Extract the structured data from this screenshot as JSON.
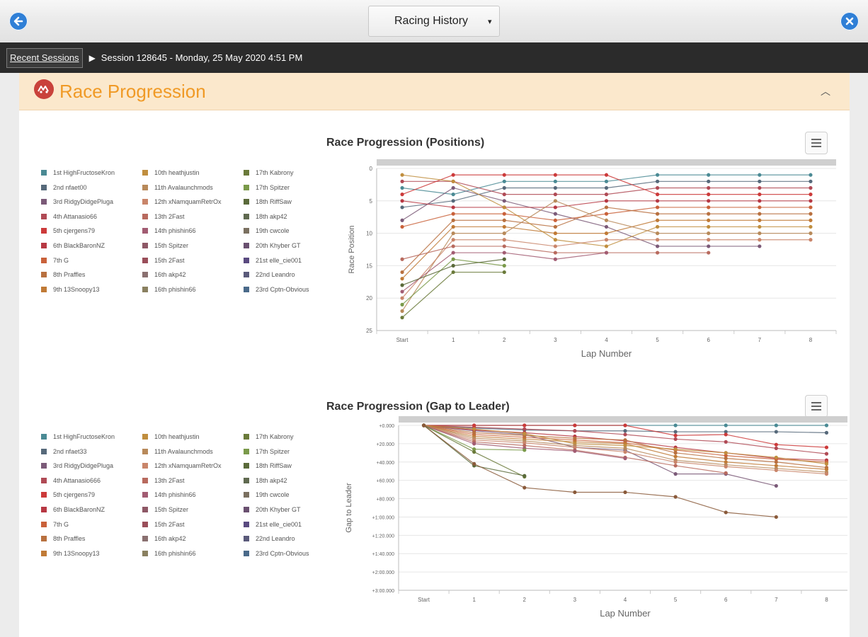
{
  "header": {
    "dropdown_label": "Racing History",
    "dropdown_caret": "▾",
    "back_icon": "arrow-left-icon",
    "close_icon": "close-icon"
  },
  "breadcrumb": {
    "recent": "Recent Sessions",
    "arrow": "▶",
    "session": "Session 128645 - Monday, 25 May 2020 4:51 PM"
  },
  "panel": {
    "title": "Race Progression",
    "icon": "race-icon",
    "collapse_glyph": "︿"
  },
  "colors": {
    "accent": "#f09a26",
    "panel_header": "#fbe8cc",
    "nav": "#2b2b2b",
    "blue": "#2f7fd6"
  },
  "legend": [
    {
      "label": "1st HighFructoseKron",
      "color": "#4a8a94"
    },
    {
      "label": "2nd nfaet00",
      "color": "#56697a"
    },
    {
      "label": "3rd RidgyDidgePluga",
      "color": "#7b5a78"
    },
    {
      "label": "4th Attanasio66",
      "color": "#b04a55"
    },
    {
      "label": "5th cjergens79",
      "color": "#cc3a3a"
    },
    {
      "label": "6th BlackBaronNZ",
      "color": "#b73843"
    },
    {
      "label": "7th G",
      "color": "#c9613a"
    },
    {
      "label": "8th Praffles",
      "color": "#b8703f"
    },
    {
      "label": "9th 13Snoopy13",
      "color": "#c07a36"
    },
    {
      "label": "10th heathjustin",
      "color": "#c08e3e"
    },
    {
      "label": "11th Avalaunchmods",
      "color": "#b88a5a"
    },
    {
      "label": "12th xNamquamRetrOx",
      "color": "#c9856a"
    },
    {
      "label": "13th 2Fast",
      "color": "#b86a5e"
    },
    {
      "label": "14th phishin66",
      "color": "#a25c72"
    },
    {
      "label": "15th Spitzer",
      "color": "#8e5866"
    },
    {
      "label": "15th 2Fast",
      "color": "#9a4e5a"
    },
    {
      "label": "16th akp42",
      "color": "#8a7070"
    },
    {
      "label": "16th phishin66",
      "color": "#8a8060"
    },
    {
      "label": "17th Kabrony",
      "color": "#6a7a3a"
    },
    {
      "label": "17th Spitzer",
      "color": "#7a9a4a"
    },
    {
      "label": "18th RiffSaw",
      "color": "#5a6a3a"
    },
    {
      "label": "18th akp42",
      "color": "#606a50"
    },
    {
      "label": "19th cwcole",
      "color": "#7a7060"
    },
    {
      "label": "20th Khyber GT",
      "color": "#6a5070"
    },
    {
      "label": "21st elle_cie001",
      "color": "#5a4a80"
    },
    {
      "label": "22nd Leandro",
      "color": "#5a5a7a"
    },
    {
      "label": "23rd Cptn-Obvious",
      "color": "#4a6a8a"
    }
  ],
  "legend2": [
    {
      "label": "1st HighFructoseKron",
      "color": "#4a8a94"
    },
    {
      "label": "2nd nfaet33",
      "color": "#56697a"
    },
    {
      "label": "3rd RidgyDidgePluga",
      "color": "#7b5a78"
    },
    {
      "label": "4th Attanasio666",
      "color": "#b04a55"
    },
    {
      "label": "5th cjergens79",
      "color": "#cc3a3a"
    },
    {
      "label": "6th BlackBaronNZ",
      "color": "#b73843"
    },
    {
      "label": "7th G",
      "color": "#c9613a"
    },
    {
      "label": "8th Praffles",
      "color": "#b8703f"
    },
    {
      "label": "9th 13Snoopy13",
      "color": "#c07a36"
    },
    {
      "label": "10th heathjustin",
      "color": "#c08e3e"
    },
    {
      "label": "11th Avalaunchmods",
      "color": "#b88a5a"
    },
    {
      "label": "12th xNamquamRetrOx",
      "color": "#c9856a"
    },
    {
      "label": "13th 2Fast",
      "color": "#b86a5e"
    },
    {
      "label": "14th phishin66",
      "color": "#a25c72"
    },
    {
      "label": "15th Spitzer",
      "color": "#8e5866"
    },
    {
      "label": "15th 2Fast",
      "color": "#9a4e5a"
    },
    {
      "label": "16th akp42",
      "color": "#8a7070"
    },
    {
      "label": "16th phishin66",
      "color": "#8a8060"
    },
    {
      "label": "17th Kabrony",
      "color": "#6a7a3a"
    },
    {
      "label": "17th Spitzer",
      "color": "#7a9a4a"
    },
    {
      "label": "18th RiffSaw",
      "color": "#5a6a3a"
    },
    {
      "label": "18th akp42",
      "color": "#606a50"
    },
    {
      "label": "19th cwcole",
      "color": "#7a7060"
    },
    {
      "label": "20th Khyber GT",
      "color": "#6a5070"
    },
    {
      "label": "21st elle_cie001",
      "color": "#5a4a80"
    },
    {
      "label": "22nd Leandro",
      "color": "#5a5a7a"
    },
    {
      "label": "23rd Cptn-Obvious",
      "color": "#4a6a8a"
    }
  ],
  "chart_data": [
    {
      "type": "line",
      "title": "Race Progression (Positions)",
      "xlabel": "Lap Number",
      "ylabel": "Race Position",
      "categories": [
        "Start",
        "1",
        "2",
        "3",
        "4",
        "5",
        "6",
        "7",
        "8"
      ],
      "ylim": [
        0,
        25
      ],
      "y_reversed": true,
      "yticks": [
        0,
        5,
        10,
        15,
        20,
        25
      ],
      "series": [
        {
          "color": "#4a8a94",
          "values": [
            3,
            4,
            2,
            2,
            2,
            1,
            1,
            1,
            1
          ]
        },
        {
          "color": "#56697a",
          "values": [
            6,
            5,
            3,
            3,
            3,
            2,
            2,
            2,
            2
          ]
        },
        {
          "color": "#7b5a78",
          "values": [
            8,
            3,
            5,
            7,
            9,
            12,
            12,
            12,
            null
          ]
        },
        {
          "color": "#b04a55",
          "values": [
            2,
            2,
            4,
            4,
            4,
            3,
            3,
            3,
            3
          ]
        },
        {
          "color": "#cc3a3a",
          "values": [
            4,
            1,
            1,
            1,
            1,
            4,
            4,
            4,
            4
          ]
        },
        {
          "color": "#b73843",
          "values": [
            5,
            6,
            6,
            6,
            5,
            5,
            5,
            5,
            5
          ]
        },
        {
          "color": "#c9613a",
          "values": [
            9,
            7,
            7,
            8,
            7,
            6,
            6,
            6,
            6
          ]
        },
        {
          "color": "#b8703f",
          "values": [
            16,
            8,
            8,
            9,
            6,
            7,
            7,
            7,
            7
          ]
        },
        {
          "color": "#c07a36",
          "values": [
            17,
            9,
            9,
            10,
            10,
            8,
            8,
            8,
            8
          ]
        },
        {
          "color": "#c08e3e",
          "values": [
            1,
            2,
            6,
            11,
            12,
            9,
            9,
            9,
            9
          ]
        },
        {
          "color": "#b88a5a",
          "values": [
            22,
            10,
            10,
            5,
            8,
            10,
            10,
            10,
            10
          ]
        },
        {
          "color": "#c9856a",
          "values": [
            20,
            11,
            11,
            12,
            11,
            11,
            11,
            11,
            11
          ]
        },
        {
          "color": "#b86a5e",
          "values": [
            14,
            12,
            12,
            13,
            13,
            13,
            13,
            null,
            null
          ]
        },
        {
          "color": "#a25c72",
          "values": [
            19,
            13,
            13,
            14,
            13,
            null,
            null,
            null,
            null
          ]
        },
        {
          "color": "#7a9a4a",
          "values": [
            21,
            14,
            15,
            null,
            null,
            null,
            null,
            null,
            null
          ]
        },
        {
          "color": "#6a7a3a",
          "values": [
            23,
            16,
            16,
            null,
            null,
            null,
            null,
            null,
            null
          ]
        },
        {
          "color": "#5a6a3a",
          "values": [
            18,
            15,
            14,
            null,
            null,
            null,
            null,
            null,
            null
          ]
        }
      ]
    },
    {
      "type": "line",
      "title": "Race Progression (Gap to Leader)",
      "xlabel": "Lap Number",
      "ylabel": "Gap to Leader",
      "categories": [
        "Start",
        "1",
        "2",
        "3",
        "4",
        "5",
        "6",
        "7",
        "8"
      ],
      "ylim": [
        0,
        180
      ],
      "y_reversed": true,
      "yticks": [
        0,
        20,
        40,
        60,
        80,
        100,
        120,
        140,
        160,
        180
      ],
      "ytick_labels": [
        "+0.000",
        "+20.000",
        "+40.000",
        "+60.000",
        "+80.000",
        "+1:00.000",
        "+1:20.000",
        "+1:40.000",
        "+2:00.000",
        "+3:00.000"
      ],
      "series": [
        {
          "color": "#4a8a94",
          "values": [
            0,
            0,
            0,
            0,
            0,
            0,
            0,
            0,
            0
          ]
        },
        {
          "color": "#56697a",
          "values": [
            0,
            3,
            5,
            6,
            6,
            7,
            7,
            7,
            8
          ]
        },
        {
          "color": "#7b5a78",
          "values": [
            0,
            6,
            10,
            24,
            27,
            53,
            53,
            66,
            null
          ]
        },
        {
          "color": "#b04a55",
          "values": [
            0,
            2,
            4,
            6,
            10,
            15,
            18,
            25,
            31
          ]
        },
        {
          "color": "#cc3a3a",
          "values": [
            0,
            0,
            0,
            0,
            0,
            11,
            10,
            21,
            24
          ]
        },
        {
          "color": "#b73843",
          "values": [
            0,
            5,
            8,
            12,
            17,
            24,
            30,
            36,
            38
          ]
        },
        {
          "color": "#c9613a",
          "values": [
            0,
            10,
            13,
            16,
            19,
            27,
            33,
            37,
            40
          ]
        },
        {
          "color": "#b8703f",
          "values": [
            0,
            8,
            11,
            14,
            16,
            30,
            36,
            40,
            46
          ]
        },
        {
          "color": "#c07a36",
          "values": [
            0,
            12,
            15,
            18,
            20,
            34,
            40,
            44,
            48
          ]
        },
        {
          "color": "#c08e3e",
          "values": [
            0,
            4,
            9,
            20,
            22,
            26,
            30,
            35,
            42
          ]
        },
        {
          "color": "#b88a5a",
          "values": [
            0,
            14,
            17,
            22,
            25,
            38,
            43,
            47,
            51
          ]
        },
        {
          "color": "#c9856a",
          "values": [
            0,
            16,
            19,
            24,
            29,
            40,
            45,
            49,
            53
          ]
        },
        {
          "color": "#b86a5e",
          "values": [
            0,
            18,
            22,
            27,
            35,
            44,
            52,
            null,
            null
          ]
        },
        {
          "color": "#a25c72",
          "values": [
            0,
            20,
            25,
            28,
            36,
            null,
            null,
            null,
            null
          ]
        },
        {
          "color": "#7a9a4a",
          "values": [
            0,
            26,
            27,
            null,
            null,
            null,
            null,
            null,
            null
          ]
        },
        {
          "color": "#6a7a3a",
          "values": [
            0,
            29,
            56,
            null,
            null,
            null,
            null,
            null,
            null
          ]
        },
        {
          "color": "#5a6a3a",
          "values": [
            0,
            44,
            55,
            null,
            null,
            null,
            null,
            null,
            null
          ]
        },
        {
          "color": "#8a5a3a",
          "values": [
            0,
            42,
            68,
            73,
            73,
            78,
            95,
            100,
            null
          ]
        }
      ]
    }
  ]
}
